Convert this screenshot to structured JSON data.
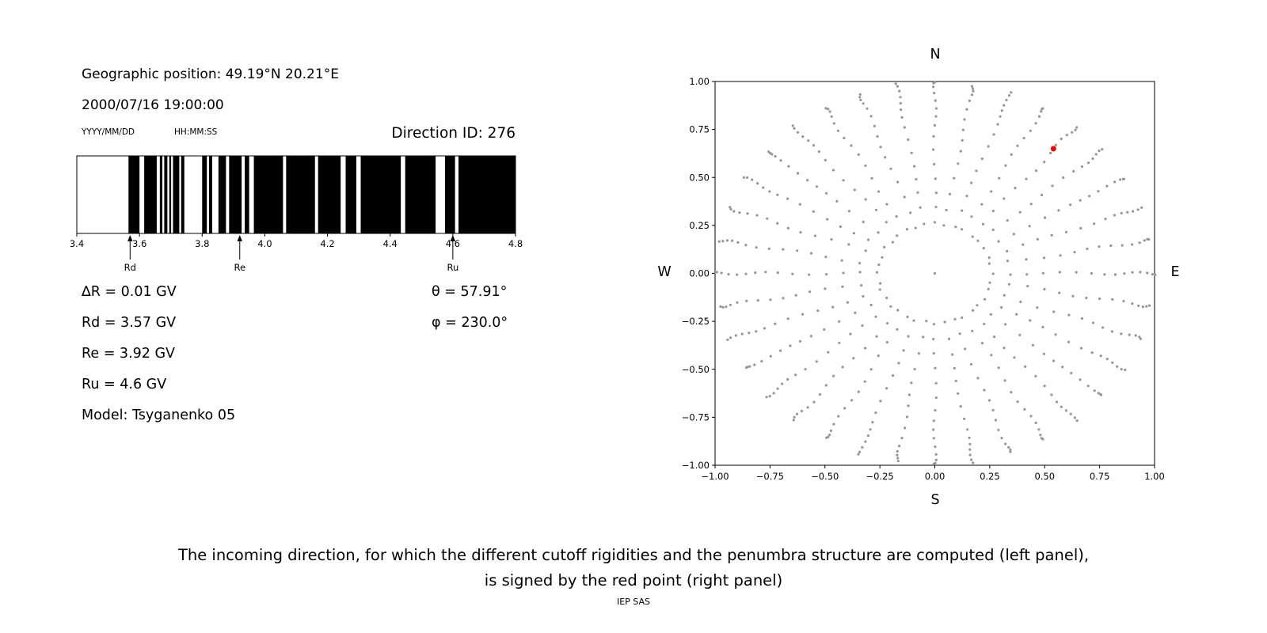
{
  "left_panel": {
    "geographic_position": "Geographic position: 49.19°N 20.21°E",
    "datetime": "2000/07/16 19:00:00",
    "date_format": "YYYY/MM/DD",
    "time_format": "HH:MM:SS",
    "direction_id": "Direction ID: 276",
    "params": [
      "∆R = 0.01 GV",
      "Rd = 3.57 GV",
      "Re = 3.92 GV",
      "Ru = 4.6 GV",
      "Model: Tsyganenko 05"
    ],
    "theta": "θ = 57.91°",
    "phi": "φ = 230.0°"
  },
  "caption": {
    "line1": "The incoming direction, for which the different cutoff rigidities and the penumbra structure are computed (left panel),",
    "line2": "is signed by the red point (right panel)"
  },
  "footer": "IEP SAS",
  "chart_data": [
    {
      "id": "penumbra",
      "type": "bar",
      "description": "Penumbra structure barcode: black = allowed rigidity bands, white = forbidden",
      "xlim": [
        3.4,
        4.8
      ],
      "xtick_labels": [
        "3.4",
        "3.6",
        "3.8",
        "4.0",
        "4.2",
        "4.4",
        "4.6",
        "4.8"
      ],
      "black_intervals": [
        [
          3.565,
          3.6
        ],
        [
          3.615,
          3.655
        ],
        [
          3.665,
          3.673
        ],
        [
          3.679,
          3.689
        ],
        [
          3.695,
          3.701
        ],
        [
          3.707,
          3.727
        ],
        [
          3.733,
          3.743
        ],
        [
          3.8,
          3.815
        ],
        [
          3.822,
          3.832
        ],
        [
          3.852,
          3.876
        ],
        [
          3.886,
          3.926
        ],
        [
          3.936,
          3.95
        ],
        [
          3.965,
          4.058
        ],
        [
          4.068,
          4.16
        ],
        [
          4.17,
          4.242
        ],
        [
          4.258,
          4.292
        ],
        [
          4.306,
          4.434
        ],
        [
          4.448,
          4.545
        ],
        [
          4.575,
          4.607
        ],
        [
          4.618,
          4.8
        ]
      ],
      "markers": [
        {
          "label": "Rd",
          "x": 3.57
        },
        {
          "label": "Re",
          "x": 3.92
        },
        {
          "label": "Ru",
          "x": 4.6
        }
      ],
      "bar_color": "#000000"
    },
    {
      "id": "direction_map",
      "type": "scatter",
      "description": "Grid of incoming directions (radius = sin(zenith), azimuth from N); red point marks the computed direction",
      "xlim": [
        -1,
        1
      ],
      "ylim": [
        -1,
        1
      ],
      "tick_values": [
        -1,
        -0.75,
        -0.5,
        -0.25,
        0,
        0.25,
        0.5,
        0.75,
        1
      ],
      "tick_labels": [
        "−1.00",
        "−0.75",
        "−0.50",
        "−0.25",
        "0.00",
        "0.25",
        "0.50",
        "0.75",
        "1.00"
      ],
      "compass": {
        "top": "N",
        "bottom": "S",
        "left": "W",
        "right": "E"
      },
      "grid_points": {
        "azimuth_deg_start": 0,
        "azimuth_deg_step": 10,
        "azimuth_count": 36,
        "zenith_deg_start": 15,
        "zenith_deg_step": 5,
        "zenith_count": 15,
        "radius_map": "sin(zenith)",
        "includes_center_point": true
      },
      "point_color": "#969696",
      "red_point": {
        "x": 0.54,
        "y": 0.65,
        "color": "#ff0000"
      }
    }
  ]
}
